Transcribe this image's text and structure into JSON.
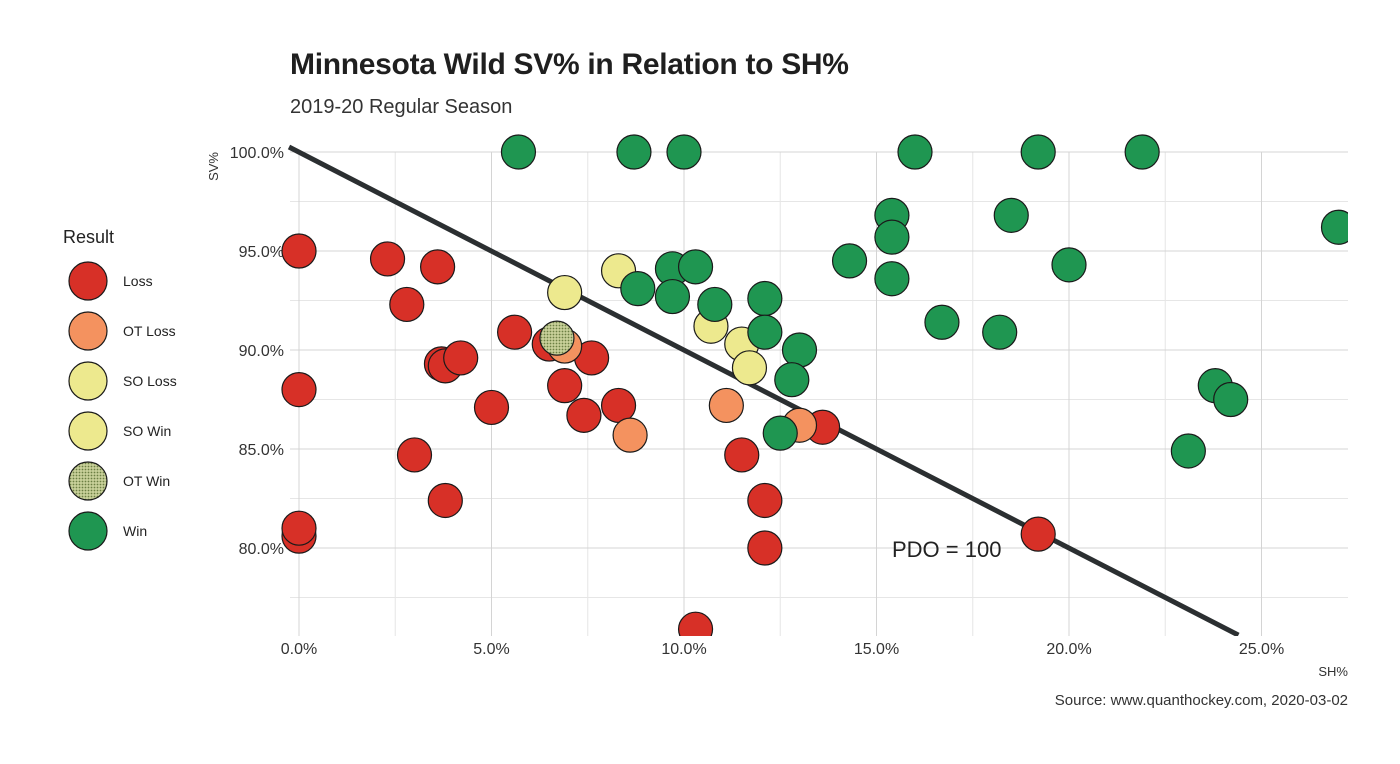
{
  "title": "Minnesota Wild SV% in Relation to SH%",
  "subtitle": "2019-20 Regular Season",
  "caption": "Source: www.quanthockey.com, 2020-03-02",
  "chart_data": {
    "type": "scatter",
    "title": "Minnesota Wild SV% in Relation to SH%",
    "subtitle": "2019-20 Regular Season",
    "xlabel": "SH%",
    "ylabel": "SV%",
    "xlim": [
      -0.6,
      27
    ],
    "ylim": [
      76,
      100
    ],
    "x_ticks": [
      0,
      5,
      10,
      15,
      20,
      25
    ],
    "x_tick_labels": [
      "0.0%",
      "5.0%",
      "10.0%",
      "15.0%",
      "20.0%",
      "25.0%"
    ],
    "y_ticks": [
      80,
      85,
      90,
      95,
      100
    ],
    "y_tick_labels": [
      "80.0%",
      "85.0%",
      "90.0%",
      "95.0%",
      "100.0%"
    ],
    "grid": true,
    "legend": {
      "title": "Result",
      "position": "left",
      "entries": [
        {
          "label": "Loss",
          "color": "#d73027"
        },
        {
          "label": "OT Loss",
          "color": "#f4925f"
        },
        {
          "label": "SO Loss",
          "color": "#ede98e"
        },
        {
          "label": "SO Win",
          "color": "#ede98e"
        },
        {
          "label": "OT Win",
          "color": "#a7b57c"
        },
        {
          "label": "Win",
          "color": "#1f9651"
        }
      ]
    },
    "reference_line": {
      "label": "PDO = 100",
      "from": [
        0,
        100
      ],
      "to": [
        24.4,
        75.6
      ]
    },
    "annotation": {
      "text": "PDO = 100",
      "x": 17,
      "y": 80
    },
    "series": [
      {
        "name": "Loss",
        "color": "#d73027",
        "points": [
          [
            0.0,
            95.0
          ],
          [
            0.0,
            88.0
          ],
          [
            0.0,
            80.6
          ],
          [
            0.0,
            81.0
          ],
          [
            2.3,
            94.6
          ],
          [
            2.8,
            92.3
          ],
          [
            3.0,
            84.7
          ],
          [
            3.6,
            94.2
          ],
          [
            3.7,
            89.3
          ],
          [
            3.8,
            89.2
          ],
          [
            4.2,
            89.6
          ],
          [
            3.8,
            82.4
          ],
          [
            5.0,
            87.1
          ],
          [
            5.6,
            90.9
          ],
          [
            6.5,
            90.3
          ],
          [
            6.9,
            88.2
          ],
          [
            7.4,
            86.7
          ],
          [
            7.6,
            89.6
          ],
          [
            8.3,
            87.2
          ],
          [
            10.3,
            75.9
          ],
          [
            11.5,
            84.7
          ],
          [
            12.1,
            82.4
          ],
          [
            12.1,
            80.0
          ],
          [
            13.6,
            86.1
          ],
          [
            19.2,
            80.7
          ]
        ]
      },
      {
        "name": "OT Loss",
        "color": "#f4925f",
        "points": [
          [
            6.9,
            90.2
          ],
          [
            8.6,
            85.7
          ],
          [
            11.1,
            87.2
          ],
          [
            13.0,
            86.2
          ]
        ]
      },
      {
        "name": "SO Loss",
        "color": "#ede98e",
        "points": [
          [
            6.9,
            92.9
          ],
          [
            8.3,
            94.0
          ],
          [
            10.7,
            91.2
          ]
        ]
      },
      {
        "name": "SO Win",
        "color": "#ede98e",
        "points": [
          [
            11.5,
            90.3
          ],
          [
            11.7,
            89.1
          ]
        ]
      },
      {
        "name": "OT Win",
        "color": "#a7b57c",
        "points": [
          [
            6.7,
            90.6
          ]
        ]
      },
      {
        "name": "Win",
        "color": "#1f9651",
        "points": [
          [
            5.7,
            100.0
          ],
          [
            8.7,
            100.0
          ],
          [
            10.0,
            100.0
          ],
          [
            16.0,
            100.0
          ],
          [
            19.2,
            100.0
          ],
          [
            21.9,
            100.0
          ],
          [
            9.7,
            94.1
          ],
          [
            10.3,
            94.2
          ],
          [
            8.8,
            93.1
          ],
          [
            9.7,
            92.7
          ],
          [
            10.8,
            92.3
          ],
          [
            12.1,
            92.6
          ],
          [
            12.1,
            90.9
          ],
          [
            13.0,
            90.0
          ],
          [
            12.8,
            88.5
          ],
          [
            12.5,
            85.8
          ],
          [
            14.3,
            94.5
          ],
          [
            15.4,
            96.8
          ],
          [
            15.4,
            95.7
          ],
          [
            15.4,
            93.6
          ],
          [
            16.7,
            91.4
          ],
          [
            18.2,
            90.9
          ],
          [
            18.5,
            96.8
          ],
          [
            20.0,
            94.3
          ],
          [
            23.1,
            84.9
          ],
          [
            23.8,
            88.2
          ],
          [
            24.2,
            87.5
          ],
          [
            27.0,
            96.2
          ]
        ]
      }
    ]
  }
}
